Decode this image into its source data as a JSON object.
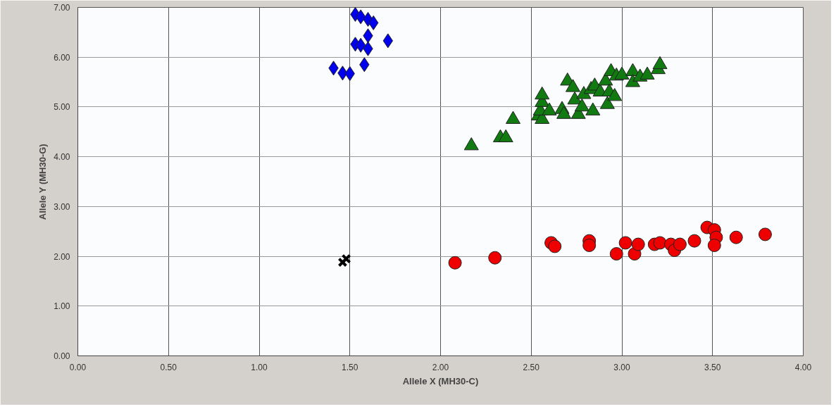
{
  "chart_data": {
    "type": "scatter",
    "xlabel": "Allele X (MH30-C)",
    "ylabel": "Allele Y (MH30-G)",
    "xlim": [
      0,
      4
    ],
    "ylim": [
      0,
      7
    ],
    "xticks": [
      {
        "value": 0,
        "label": "0.00"
      },
      {
        "value": 0.5,
        "label": "0.50"
      },
      {
        "value": 1,
        "label": "1.00"
      },
      {
        "value": 1.5,
        "label": "1.50"
      },
      {
        "value": 2,
        "label": "2.00"
      },
      {
        "value": 2.5,
        "label": "2.50"
      },
      {
        "value": 3,
        "label": "3.00"
      },
      {
        "value": 3.5,
        "label": "3.50"
      },
      {
        "value": 4,
        "label": "4.00"
      }
    ],
    "yticks": [
      {
        "value": 0,
        "label": "0.00"
      },
      {
        "value": 1,
        "label": "1.00"
      },
      {
        "value": 2,
        "label": "2.00"
      },
      {
        "value": 3,
        "label": "3.00"
      },
      {
        "value": 4,
        "label": "4.00"
      },
      {
        "value": 5,
        "label": "5.00"
      },
      {
        "value": 6,
        "label": "6.00"
      },
      {
        "value": 7,
        "label": "7.00"
      }
    ],
    "grid": true,
    "series": [
      {
        "color": "#0000ee",
        "marker": "diamond",
        "x": [
          1.53,
          1.56,
          1.6,
          1.63,
          1.6,
          1.71,
          1.53,
          1.56,
          1.6,
          1.58,
          1.41,
          1.46,
          1.5
        ],
        "values": [
          6.86,
          6.81,
          6.76,
          6.69,
          6.43,
          6.33,
          6.26,
          6.24,
          6.17,
          5.85,
          5.78,
          5.68,
          5.67
        ]
      },
      {
        "color": "#117a11",
        "marker": "triangle",
        "x": [
          2.17,
          2.33,
          2.36,
          2.4,
          2.54,
          2.56,
          2.55,
          2.56,
          2.56,
          2.6,
          2.67,
          2.68,
          2.7,
          2.73,
          2.74,
          2.76,
          2.78,
          2.79,
          2.83,
          2.84,
          2.85,
          2.88,
          2.91,
          2.93,
          2.94,
          2.92,
          2.96,
          2.97,
          3.0,
          3.06,
          3.06,
          3.1,
          3.14,
          3.2,
          3.21
        ],
        "values": [
          4.22,
          4.38,
          4.38,
          4.75,
          4.82,
          4.75,
          4.92,
          5.09,
          5.24,
          4.92,
          4.95,
          4.85,
          5.52,
          5.39,
          5.14,
          4.85,
          5.0,
          5.25,
          5.35,
          4.92,
          5.42,
          5.3,
          5.52,
          5.3,
          5.71,
          5.05,
          5.21,
          5.62,
          5.64,
          5.71,
          5.49,
          5.6,
          5.64,
          5.75,
          5.85
        ]
      },
      {
        "color": "#ee0000",
        "marker": "circle",
        "x": [
          2.08,
          2.3,
          2.61,
          2.63,
          2.82,
          2.82,
          2.97,
          3.02,
          3.07,
          3.09,
          3.18,
          3.21,
          3.27,
          3.29,
          3.32,
          3.4,
          3.47,
          3.51,
          3.52,
          3.51,
          3.63,
          3.79
        ],
        "values": [
          1.87,
          1.97,
          2.27,
          2.2,
          2.31,
          2.22,
          2.05,
          2.27,
          2.05,
          2.24,
          2.24,
          2.27,
          2.24,
          2.12,
          2.24,
          2.31,
          2.58,
          2.53,
          2.38,
          2.22,
          2.38,
          2.44
        ]
      },
      {
        "color": "#000000",
        "marker": "cross",
        "x": [
          1.46,
          1.48
        ],
        "values": [
          1.88,
          1.95
        ]
      }
    ]
  }
}
